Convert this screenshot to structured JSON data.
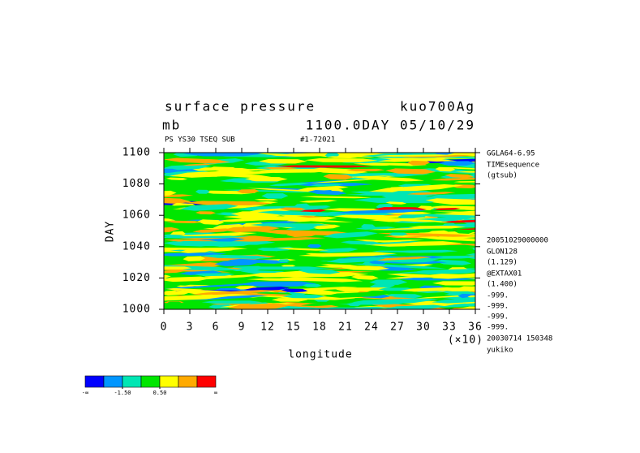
{
  "chart_data": {
    "type": "contour",
    "title": "surface pressure",
    "title_right": "kuo700Ag",
    "units": "mb",
    "subtitle_right": "1100.0DAY 05/10/29",
    "note_left": "PS YS30 TSEQ SUB",
    "note_mid": "#1-72021",
    "x_label": "longitude",
    "x_multiplier": "(×10)",
    "y_label": "DAY",
    "xlim": [
      0,
      36
    ],
    "xticks": [
      0,
      3,
      6,
      9,
      12,
      15,
      18,
      21,
      24,
      27,
      30,
      33,
      36
    ],
    "ylim": [
      1000,
      1100
    ],
    "yticks": [
      1000,
      1020,
      1040,
      1060,
      1080,
      1100
    ],
    "side_notes": [
      "GGLA64-6.95",
      "TIMEsequence",
      "(gtsub)",
      "20051029000000",
      "GLON128",
      "(1.129)",
      "@EXTAX01",
      "(1.400)",
      "-999.",
      "-999.",
      "-999.",
      "-999.",
      "20030714 150348",
      "yukiko"
    ],
    "colorbar": {
      "colors": [
        "#0000ff",
        "#0096ff",
        "#00e6b4",
        "#00e600",
        "#ffff00",
        "#ffaa00",
        "#ff0000"
      ],
      "clim": [
        -3.5,
        3.5
      ],
      "low_label": "-∞",
      "high_label": "∞",
      "ticks": [
        {
          "value": -1.5,
          "label": "-1.50"
        },
        {
          "value": 0.5,
          "label": "0.50"
        }
      ]
    }
  }
}
